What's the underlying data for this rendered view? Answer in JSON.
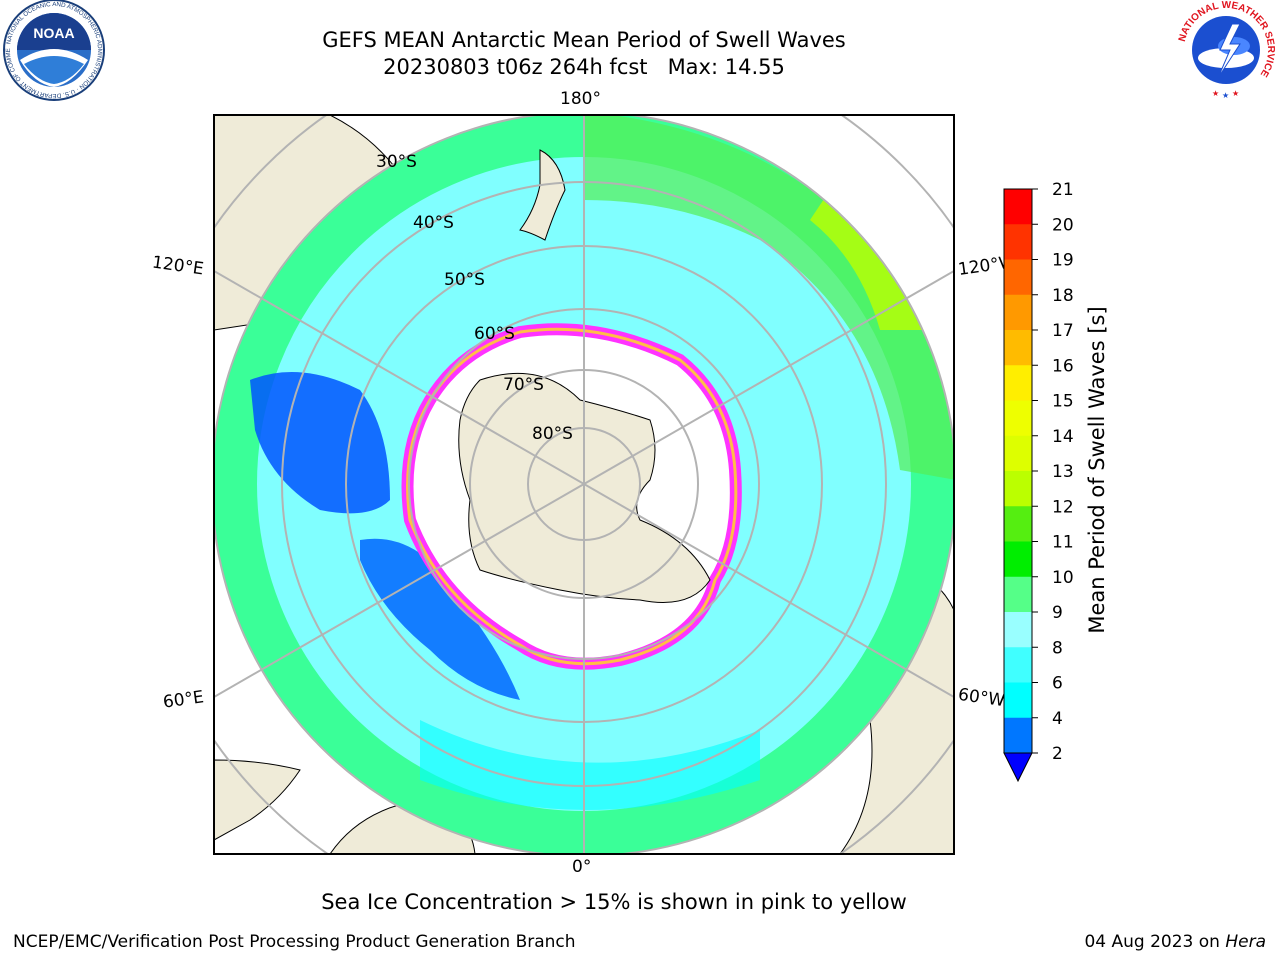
{
  "title": {
    "line1": "GEFS MEAN Antarctic Mean Period of Swell Waves",
    "line2": "20230803 t06z 264h fcst   Max: 14.55"
  },
  "map": {
    "projection": "South Polar Stereographic",
    "longitude_labels": {
      "top": "180°",
      "bottom": "0°",
      "upper_left": "120°E",
      "lower_left": "60°E",
      "upper_right": "120°W",
      "lower_right": "60°W"
    },
    "latitude_labels": [
      "30°S",
      "40°S",
      "50°S",
      "60°S",
      "70°S",
      "80°S"
    ],
    "colors": {
      "land": "#efebd8",
      "ocean_base": "#80ffff",
      "gridlines": "#b3b3b3",
      "sea_ice_low": "#ff33ff",
      "sea_ice_high": "#ffcc33"
    },
    "max_value": 14.55
  },
  "colorbar": {
    "label": "Mean Period of Swell Waves [s]",
    "ticks": [
      "2",
      "4",
      "6",
      "8",
      "9",
      "10",
      "11",
      "12",
      "13",
      "14",
      "15",
      "16",
      "17",
      "18",
      "19",
      "20",
      "21"
    ],
    "colors": [
      "#0000ff",
      "#0077ff",
      "#00ffff",
      "#40ffff",
      "#99ffff",
      "#55ff88",
      "#00ee00",
      "#55ee11",
      "#bbff00",
      "#ddff00",
      "#eeff00",
      "#ffee00",
      "#ffbb00",
      "#ff9900",
      "#ff6600",
      "#ff3300",
      "#ff0000"
    ],
    "under_color": "#0000ff",
    "extend": "min"
  },
  "caption": "Sea Ice Concentration > 15% is shown in pink to yellow",
  "footer": {
    "left": "NCEP/EMC/Verification Post Processing Product Generation Branch",
    "right_prefix": "04 Aug 2023 on ",
    "right_host": "Hera"
  },
  "logos": {
    "left": {
      "name": "noaa-logo-icon",
      "text": "NOAA",
      "ring_text": "NATIONAL OCEANIC AND ATMOSPHERIC ADMINISTRATION · U.S. DEPARTMENT OF COMMERCE"
    },
    "right": {
      "name": "nws-logo-icon",
      "ring_text": "NATIONAL WEATHER SERVICE"
    }
  }
}
